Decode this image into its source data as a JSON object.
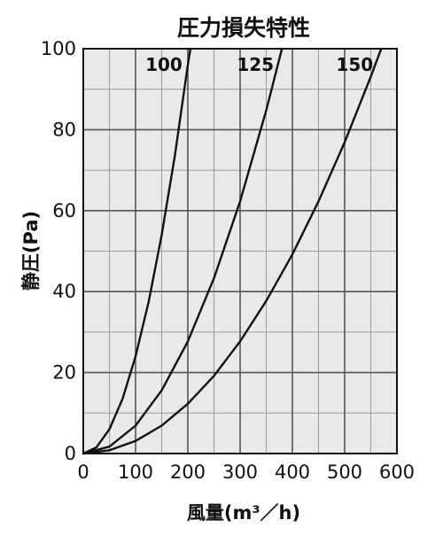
{
  "chart_data": {
    "type": "line",
    "title": "圧力損失特性",
    "xlabel": "風量(m³／h)",
    "ylabel": "静圧(Pa)",
    "xlim": [
      0,
      600
    ],
    "ylim": [
      0,
      100
    ],
    "x_ticks": [
      0,
      100,
      200,
      300,
      400,
      500,
      600
    ],
    "x_tick_labels": [
      "0",
      "100",
      "200",
      "300",
      "400",
      "500",
      "600"
    ],
    "y_ticks": [
      0,
      20,
      40,
      60,
      80,
      100
    ],
    "y_tick_labels": [
      "0",
      "20",
      "40",
      "60",
      "80",
      "100"
    ],
    "x_minor_step": 50,
    "y_minor_step": 10,
    "grid": true,
    "series": [
      {
        "name": "100",
        "x": [
          0,
          25,
          50,
          75,
          100,
          125,
          150,
          175,
          200,
          205
        ],
        "y": [
          0,
          1.5,
          6,
          13.5,
          24,
          37.5,
          54,
          73.5,
          96,
          100
        ]
      },
      {
        "name": "125",
        "x": [
          0,
          50,
          100,
          150,
          200,
          250,
          300,
          350,
          380
        ],
        "y": [
          0,
          1.7,
          6.9,
          15.6,
          27.7,
          43.3,
          62.3,
          84.8,
          100
        ]
      },
      {
        "name": "150",
        "x": [
          0,
          50,
          100,
          150,
          200,
          250,
          300,
          350,
          400,
          450,
          500,
          550,
          570
        ],
        "y": [
          0,
          0.8,
          3.1,
          6.9,
          12.3,
          19.2,
          27.7,
          37.7,
          49.2,
          62.3,
          76.9,
          93.1,
          100
        ]
      }
    ],
    "series_label_positions": [
      "top",
      "top",
      "top"
    ]
  }
}
